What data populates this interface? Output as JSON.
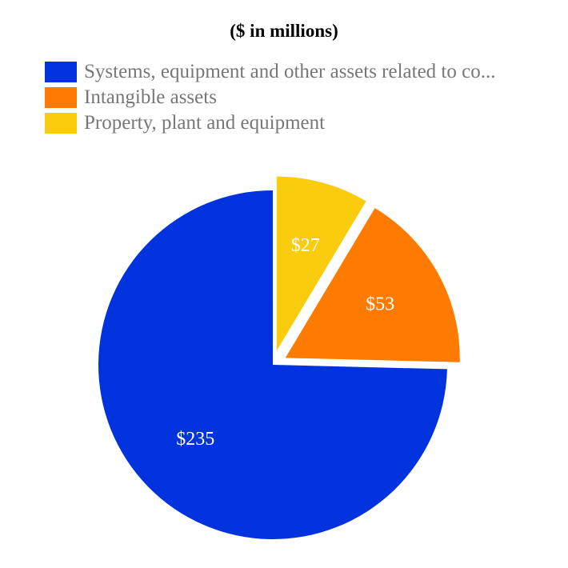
{
  "chart_data": {
    "type": "pie",
    "title": "($ in millions)",
    "legend_placement": "top-left",
    "slices": [
      {
        "name": "Systems, equipment and other assets related to co...",
        "value": 235,
        "label": "$235",
        "color": "#0033dd",
        "exploded": false
      },
      {
        "name": "Intangible assets",
        "value": 53,
        "label": "$53",
        "color": "#ff7b00",
        "exploded": true
      },
      {
        "name": "Property, plant and equipment",
        "value": 27,
        "label": "$27",
        "color": "#facc0e",
        "exploded": true
      }
    ]
  }
}
